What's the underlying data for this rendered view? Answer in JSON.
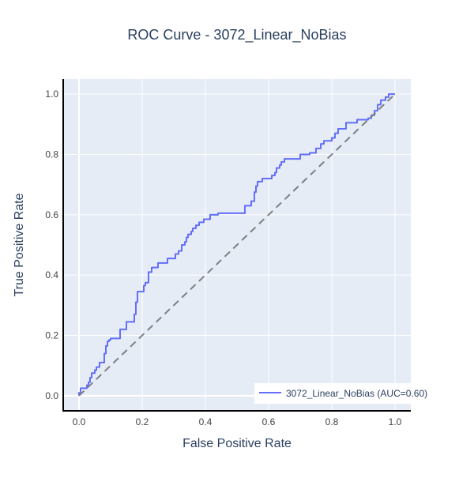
{
  "chart_data": {
    "type": "line",
    "title": "ROC Curve - 3072_Linear_NoBias",
    "xlabel": "False Positive Rate",
    "ylabel": "True Positive Rate",
    "xlim": [
      -0.05,
      1.05
    ],
    "ylim": [
      -0.05,
      1.05
    ],
    "xticks": [
      "0.0",
      "0.2",
      "0.4",
      "0.6",
      "0.8",
      "1.0"
    ],
    "yticks": [
      "0.0",
      "0.2",
      "0.4",
      "0.6",
      "0.8",
      "1.0"
    ],
    "grid": true,
    "legend_position": "bottom-right",
    "series": [
      {
        "name": "3072_Linear_NoBias (AUC=0.60)",
        "color": "#636efa",
        "style": "solid",
        "x": [
          0.0,
          0.0,
          0.005,
          0.005,
          0.025,
          0.025,
          0.03,
          0.03,
          0.035,
          0.035,
          0.04,
          0.04,
          0.05,
          0.05,
          0.055,
          0.055,
          0.065,
          0.065,
          0.08,
          0.08,
          0.085,
          0.085,
          0.09,
          0.09,
          0.095,
          0.095,
          0.1,
          0.1,
          0.13,
          0.13,
          0.15,
          0.15,
          0.175,
          0.175,
          0.18,
          0.18,
          0.185,
          0.185,
          0.205,
          0.205,
          0.21,
          0.21,
          0.22,
          0.22,
          0.23,
          0.23,
          0.25,
          0.25,
          0.28,
          0.28,
          0.305,
          0.305,
          0.315,
          0.315,
          0.325,
          0.325,
          0.335,
          0.335,
          0.34,
          0.34,
          0.345,
          0.345,
          0.355,
          0.355,
          0.36,
          0.36,
          0.37,
          0.37,
          0.38,
          0.38,
          0.395,
          0.395,
          0.415,
          0.415,
          0.44,
          0.44,
          0.525,
          0.525,
          0.545,
          0.545,
          0.555,
          0.555,
          0.56,
          0.56,
          0.565,
          0.565,
          0.58,
          0.58,
          0.61,
          0.61,
          0.62,
          0.62,
          0.625,
          0.625,
          0.635,
          0.635,
          0.64,
          0.64,
          0.65,
          0.65,
          0.7,
          0.7,
          0.73,
          0.73,
          0.75,
          0.75,
          0.765,
          0.765,
          0.775,
          0.775,
          0.8,
          0.8,
          0.81,
          0.81,
          0.82,
          0.82,
          0.845,
          0.845,
          0.88,
          0.88,
          0.915,
          0.915,
          0.925,
          0.925,
          0.935,
          0.935,
          0.945,
          0.945,
          0.955,
          0.955,
          0.97,
          0.97,
          0.98,
          0.98,
          1.0
        ],
        "y": [
          0.0,
          0.01,
          0.01,
          0.025,
          0.025,
          0.035,
          0.035,
          0.045,
          0.045,
          0.06,
          0.06,
          0.075,
          0.075,
          0.085,
          0.085,
          0.095,
          0.095,
          0.11,
          0.11,
          0.14,
          0.14,
          0.165,
          0.165,
          0.18,
          0.18,
          0.185,
          0.185,
          0.19,
          0.19,
          0.22,
          0.22,
          0.245,
          0.245,
          0.27,
          0.27,
          0.31,
          0.31,
          0.345,
          0.345,
          0.365,
          0.365,
          0.375,
          0.375,
          0.41,
          0.41,
          0.425,
          0.425,
          0.44,
          0.44,
          0.455,
          0.455,
          0.47,
          0.47,
          0.48,
          0.48,
          0.5,
          0.5,
          0.51,
          0.51,
          0.525,
          0.525,
          0.535,
          0.535,
          0.545,
          0.545,
          0.555,
          0.555,
          0.565,
          0.565,
          0.575,
          0.575,
          0.585,
          0.585,
          0.6,
          0.6,
          0.605,
          0.605,
          0.63,
          0.63,
          0.645,
          0.645,
          0.675,
          0.675,
          0.695,
          0.695,
          0.71,
          0.71,
          0.72,
          0.72,
          0.73,
          0.73,
          0.74,
          0.74,
          0.755,
          0.755,
          0.765,
          0.765,
          0.775,
          0.775,
          0.785,
          0.785,
          0.8,
          0.8,
          0.805,
          0.805,
          0.82,
          0.82,
          0.835,
          0.835,
          0.845,
          0.845,
          0.855,
          0.855,
          0.87,
          0.87,
          0.885,
          0.885,
          0.905,
          0.905,
          0.915,
          0.915,
          0.92,
          0.92,
          0.93,
          0.93,
          0.945,
          0.945,
          0.965,
          0.965,
          0.98,
          0.98,
          0.99,
          0.99,
          1.0,
          1.0
        ]
      },
      {
        "color": "#7f7f7f",
        "style": "dash",
        "x": [
          0,
          1
        ],
        "y": [
          0,
          1
        ]
      }
    ]
  },
  "colors": {
    "plot_bg": "#e5ecf6",
    "grid": "#ffffff",
    "axis_line": "#000000",
    "text": "#2a3f5f",
    "tick_text": "#444444"
  }
}
